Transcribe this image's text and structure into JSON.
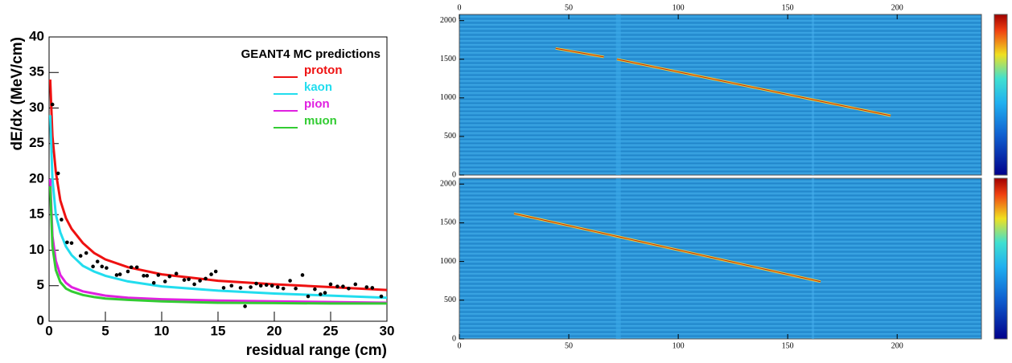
{
  "chart_data": [
    {
      "type": "line",
      "ylabel": "dE/dx (MeV/cm)",
      "xlabel": "residual range (cm)",
      "legend_title": "GEANT4 MC predictions",
      "xlim": [
        0,
        30
      ],
      "ylim": [
        0,
        40
      ],
      "xticks": [
        0,
        5,
        10,
        15,
        20,
        25,
        30
      ],
      "yticks": [
        0,
        5,
        10,
        15,
        20,
        25,
        30,
        35,
        40
      ],
      "x": [
        0.1,
        0.3,
        0.6,
        1,
        1.5,
        2,
        3,
        4,
        5,
        7,
        10,
        15,
        20,
        25,
        30
      ],
      "series": [
        {
          "name": "proton",
          "color": "#ee1111",
          "values": [
            34,
            26,
            21,
            17,
            14.5,
            13,
            11,
            9.6,
            8.7,
            7.6,
            6.6,
            5.7,
            5.2,
            4.8,
            4.4
          ]
        },
        {
          "name": "kaon",
          "color": "#22ddee",
          "values": [
            29,
            20,
            15,
            12.5,
            10.5,
            9.3,
            7.8,
            7,
            6.4,
            5.6,
            4.9,
            4.3,
            3.9,
            3.6,
            3.3
          ]
        },
        {
          "name": "pion",
          "color": "#e020e0",
          "values": [
            20,
            12,
            8.5,
            6.5,
            5.4,
            4.8,
            4.2,
            3.9,
            3.6,
            3.3,
            3.1,
            2.9,
            2.8,
            2.7,
            2.6
          ]
        },
        {
          "name": "muon",
          "color": "#33cc33",
          "values": [
            19,
            10.5,
            7.2,
            5.5,
            4.6,
            4.2,
            3.7,
            3.4,
            3.2,
            3.0,
            2.8,
            2.6,
            2.55,
            2.5,
            2.5
          ]
        }
      ],
      "points": {
        "color": "#000000",
        "x": [
          0.3,
          0.8,
          1.1,
          1.6,
          2,
          2.8,
          3.3,
          3.9,
          4.3,
          4.7,
          5.1,
          6,
          6.3,
          7,
          7.3,
          7.8,
          8.4,
          8.7,
          9.3,
          9.7,
          10.3,
          10.7,
          11.3,
          12,
          12.4,
          12.9,
          13.4,
          13.9,
          14.4,
          14.8,
          15.5,
          16.2,
          17,
          17.4,
          17.9,
          18.4,
          18.8,
          19.3,
          19.8,
          20.3,
          20.8,
          21.4,
          21.9,
          22.5,
          23,
          23.6,
          24.1,
          24.5,
          25,
          25.6,
          26.1,
          26.6,
          27.2,
          28.2,
          28.7,
          29.5
        ],
        "y": [
          30.5,
          20.8,
          14.3,
          11.1,
          11,
          9.2,
          9.6,
          7.7,
          8.4,
          7.7,
          7.5,
          6.5,
          6.6,
          7,
          7.6,
          7.6,
          6.4,
          6.4,
          5.4,
          6.5,
          5.6,
          6.3,
          6.7,
          5.8,
          5.9,
          5.2,
          5.7,
          6,
          6.6,
          7,
          4.7,
          5,
          4.7,
          2.1,
          4.8,
          5.3,
          5,
          5.1,
          5,
          4.8,
          4.6,
          5.7,
          4.6,
          6.5,
          3.5,
          4.5,
          3.8,
          4,
          5.2,
          4.9,
          4.9,
          4.6,
          5.2,
          4.8,
          4.7,
          3.5
        ]
      }
    },
    {
      "type": "image",
      "xaxis_side": "top",
      "xlim": [
        0,
        238.5
      ],
      "ylim": [
        0,
        2080
      ],
      "xticks": [
        0,
        50,
        100,
        150,
        200
      ],
      "yticks": [
        0,
        500,
        1000,
        1500,
        2000
      ],
      "tracks": [
        {
          "x": [
            44,
            66
          ],
          "y": [
            1640,
            1530
          ]
        },
        {
          "x": [
            72,
            197
          ],
          "y": [
            1500,
            770
          ]
        }
      ]
    },
    {
      "type": "image",
      "xaxis_side": "bottom",
      "xlim": [
        0,
        238.5
      ],
      "ylim": [
        0,
        2075
      ],
      "xticks": [
        0,
        50,
        100,
        150,
        200
      ],
      "yticks": [
        0,
        500,
        1000,
        1500,
        2000
      ],
      "tracks": [
        {
          "x": [
            25,
            165
          ],
          "y": [
            1620,
            740
          ]
        }
      ]
    }
  ]
}
